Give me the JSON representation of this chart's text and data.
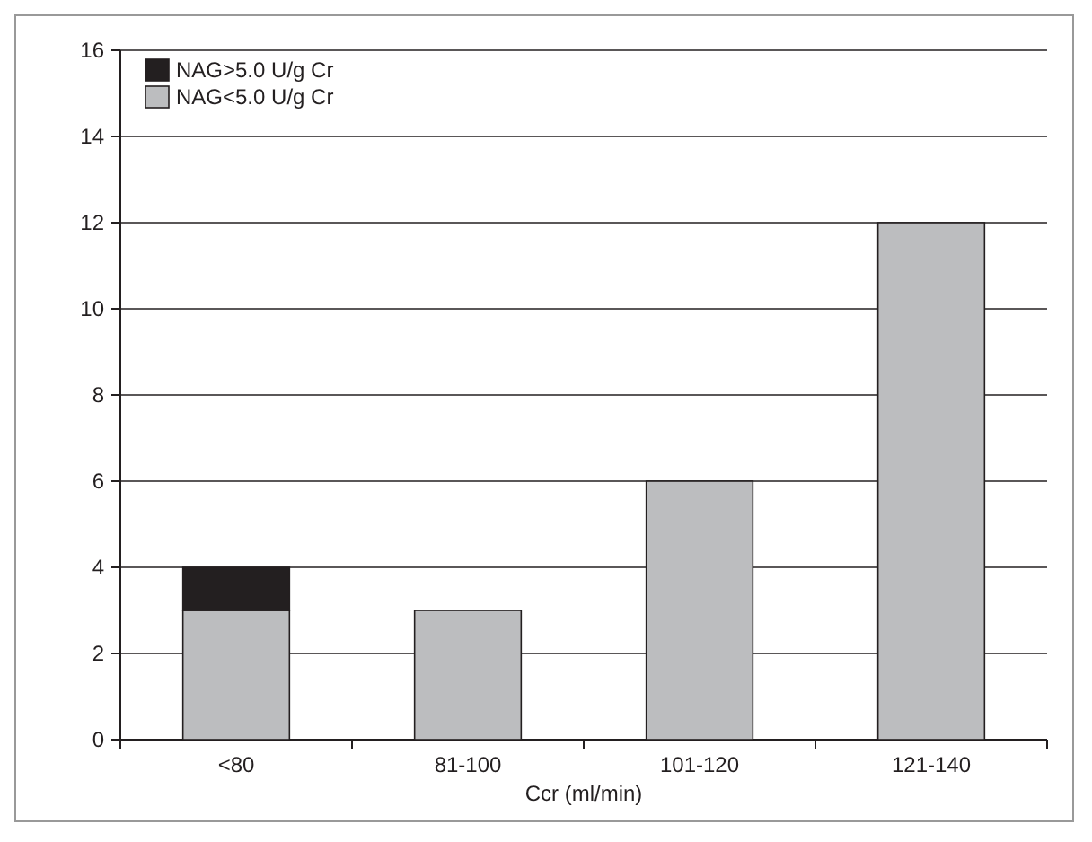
{
  "chart_data": {
    "type": "bar",
    "stacked": true,
    "xlabel": "Ccr (ml/min)",
    "categories": [
      "<80",
      "81-100",
      "101-120",
      "121-140"
    ],
    "series": [
      {
        "name": "NAG<5.0 U/g Cr",
        "color": "#bcbdbf",
        "values": [
          3,
          3,
          6,
          12
        ]
      },
      {
        "name": "NAG>5.0 U/g Cr",
        "color": "#231f20",
        "values": [
          1,
          0,
          0,
          0
        ]
      }
    ],
    "ylim": [
      0,
      16
    ],
    "yticks": [
      0,
      2,
      4,
      6,
      8,
      10,
      12,
      14,
      16
    ],
    "grid": "y",
    "legend": "top left"
  }
}
